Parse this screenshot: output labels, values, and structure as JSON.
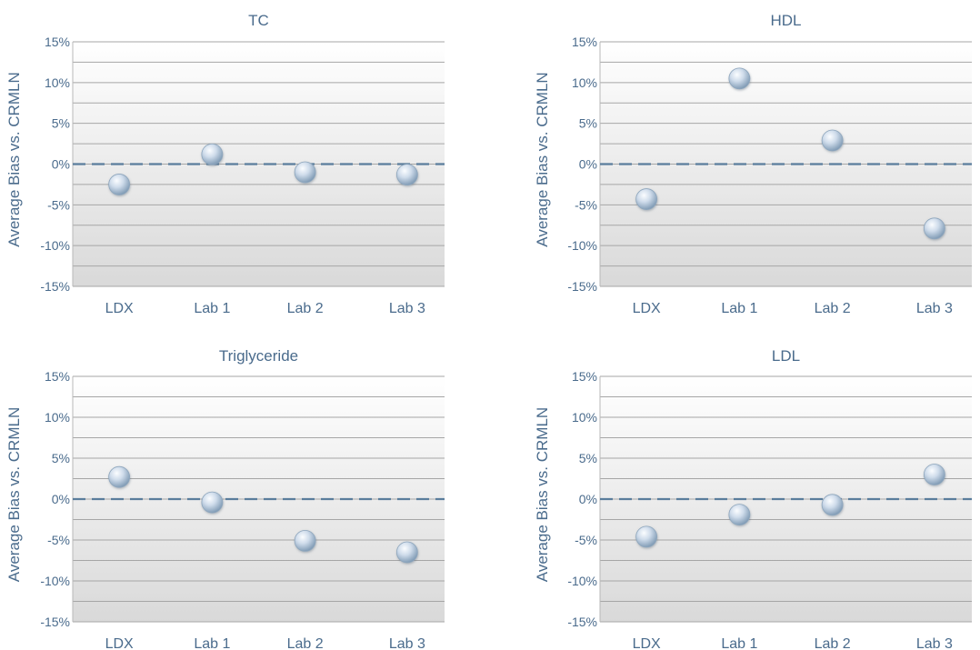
{
  "chart_data": [
    {
      "type": "scatter",
      "title": "TC",
      "ylabel": "Average Bias vs. CRMLN",
      "categories": [
        "LDX",
        "Lab 1",
        "Lab 2",
        "Lab 3"
      ],
      "values": [
        -2.5,
        1.2,
        -1.0,
        -1.3
      ],
      "ylim": [
        -15,
        15
      ],
      "yticks": [
        15,
        10,
        5,
        0,
        -5,
        -10,
        -15
      ],
      "ytick_labels": [
        "15%",
        "10%",
        "5%",
        "0%",
        "-5%",
        "-10%",
        "-15%"
      ],
      "reference_line": 0,
      "grid": true
    },
    {
      "type": "scatter",
      "title": "HDL",
      "ylabel": "Average Bias vs. CRMLN",
      "categories": [
        "LDX",
        "Lab 1",
        "Lab 2",
        "Lab 3"
      ],
      "values": [
        -4.3,
        10.5,
        2.9,
        -7.9
      ],
      "ylim": [
        -15,
        15
      ],
      "yticks": [
        15,
        10,
        5,
        0,
        -5,
        -10,
        -15
      ],
      "ytick_labels": [
        "15%",
        "10%",
        "5%",
        "0%",
        "-5%",
        "-10%",
        "-15%"
      ],
      "reference_line": 0,
      "grid": true
    },
    {
      "type": "scatter",
      "title": "Triglyceride",
      "ylabel": "Average Bias vs. CRMLN",
      "categories": [
        "LDX",
        "Lab 1",
        "Lab 2",
        "Lab 3"
      ],
      "values": [
        2.7,
        -0.4,
        -5.1,
        -6.5
      ],
      "ylim": [
        -15,
        15
      ],
      "yticks": [
        15,
        10,
        5,
        0,
        -5,
        -10,
        -15
      ],
      "ytick_labels": [
        "15%",
        "10%",
        "5%",
        "0%",
        "-5%",
        "-10%",
        "-15%"
      ],
      "reference_line": 0,
      "grid": true
    },
    {
      "type": "scatter",
      "title": "LDL",
      "ylabel": "Average Bias vs. CRMLN",
      "categories": [
        "LDX",
        "Lab 1",
        "Lab 2",
        "Lab 3"
      ],
      "values": [
        -4.6,
        -1.9,
        -0.7,
        3.0
      ],
      "ylim": [
        -15,
        15
      ],
      "yticks": [
        15,
        10,
        5,
        0,
        -5,
        -10,
        -15
      ],
      "ytick_labels": [
        "15%",
        "10%",
        "5%",
        "0%",
        "-5%",
        "-10%",
        "-15%"
      ],
      "reference_line": 0,
      "grid": true
    }
  ],
  "colors": {
    "text": "#4a6b8c",
    "reference_line": "#5a7d9c",
    "grid": "#a6a6a6",
    "marker_light": "#f4f8fc",
    "marker_dark": "#7f9ab4"
  }
}
